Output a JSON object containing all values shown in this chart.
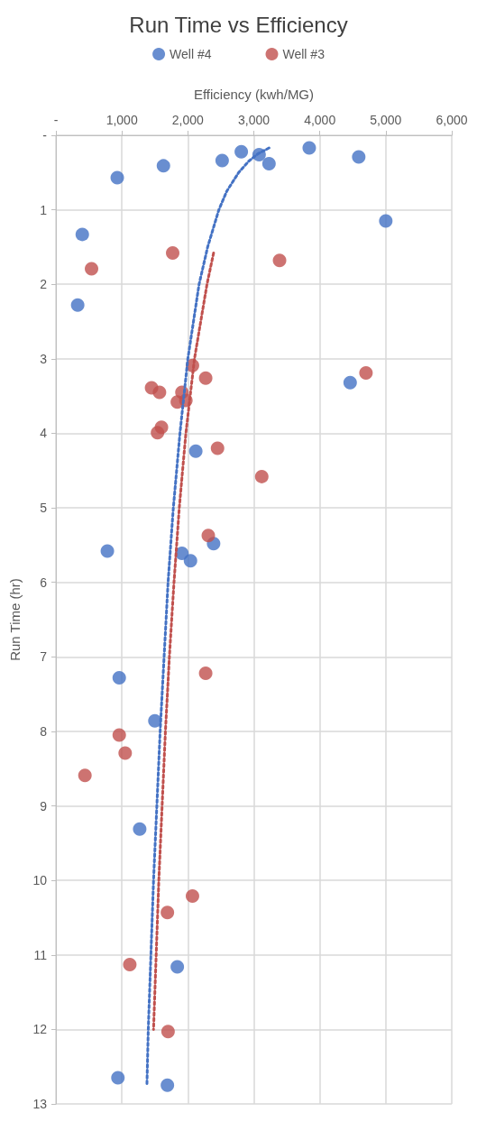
{
  "chart_data": {
    "type": "scatter",
    "title": "Run Time vs Efficiency",
    "xlabel": "Efficiency (kwh/MG)",
    "ylabel": "Run Time (hr)",
    "xlim": [
      0,
      6000
    ],
    "xticks": [
      {
        "value": 0,
        "label": "-"
      },
      {
        "value": 1000,
        "label": "1,000"
      },
      {
        "value": 2000,
        "label": "2,000"
      },
      {
        "value": 3000,
        "label": "3,000"
      },
      {
        "value": 4000,
        "label": "4,000"
      },
      {
        "value": 5000,
        "label": "5,000"
      },
      {
        "value": 6000,
        "label": "6,000"
      }
    ],
    "ylim": [
      13,
      0
    ],
    "yticks": [
      {
        "value": 0,
        "label": "-"
      },
      1,
      2,
      3,
      4,
      5,
      6,
      7,
      8,
      9,
      10,
      11,
      12,
      13
    ],
    "grid": true,
    "legend": "top",
    "marker": "circle",
    "series": [
      {
        "name": "Well #4",
        "type": "scatter",
        "color": "#4472c4",
        "x": [
          930,
          1630,
          2520,
          2810,
          3080,
          3230,
          3840,
          4590,
          5000,
          400,
          330,
          4460,
          2120,
          780,
          1910,
          2040,
          2390,
          960,
          1500,
          1270,
          1840,
          940,
          1690
        ],
        "values": [
          0.57,
          0.41,
          0.34,
          0.22,
          0.26,
          0.38,
          0.17,
          0.29,
          1.15,
          1.33,
          2.28,
          3.32,
          4.24,
          5.58,
          5.61,
          5.71,
          5.48,
          7.28,
          7.86,
          9.31,
          11.16,
          12.65,
          12.75
        ]
      },
      {
        "name": "Well #3",
        "type": "scatter",
        "color": "#c0504d",
        "x": [
          1770,
          540,
          3390,
          4700,
          2070,
          2270,
          1450,
          1570,
          1910,
          1840,
          1970,
          1600,
          1540,
          2450,
          3120,
          2310,
          2270,
          960,
          1050,
          440,
          2070,
          1690,
          1120,
          1700
        ],
        "values": [
          1.58,
          1.79,
          1.68,
          3.19,
          3.09,
          3.26,
          3.39,
          3.45,
          3.45,
          3.58,
          3.56,
          3.92,
          3.99,
          4.2,
          4.58,
          5.37,
          7.22,
          8.05,
          8.29,
          8.59,
          10.21,
          10.43,
          11.13,
          12.03
        ]
      },
      {
        "type": "line",
        "color": "#4472c4",
        "marker": "none",
        "line_style": "dotted",
        "x": [
          3230,
          3060,
          2920,
          2770,
          2590,
          2470,
          2300,
          2170,
          2000,
          1880,
          1780,
          1700,
          1640,
          1580,
          1530,
          1480,
          1440,
          1400,
          1380
        ],
        "values": [
          0.17,
          0.25,
          0.35,
          0.5,
          0.75,
          1,
          1.5,
          2,
          3,
          4,
          5,
          6,
          7,
          8,
          9,
          10,
          11,
          12,
          12.73
        ]
      },
      {
        "type": "line",
        "color": "#c0504d",
        "marker": "none",
        "line_style": "dotted",
        "x": [
          2390,
          2290,
          2100,
          1970,
          1870,
          1790,
          1720,
          1660,
          1610,
          1560,
          1520,
          1480
        ],
        "values": [
          1.58,
          2,
          3,
          4,
          5,
          6,
          7,
          8,
          9,
          10,
          11,
          12
        ]
      }
    ]
  }
}
